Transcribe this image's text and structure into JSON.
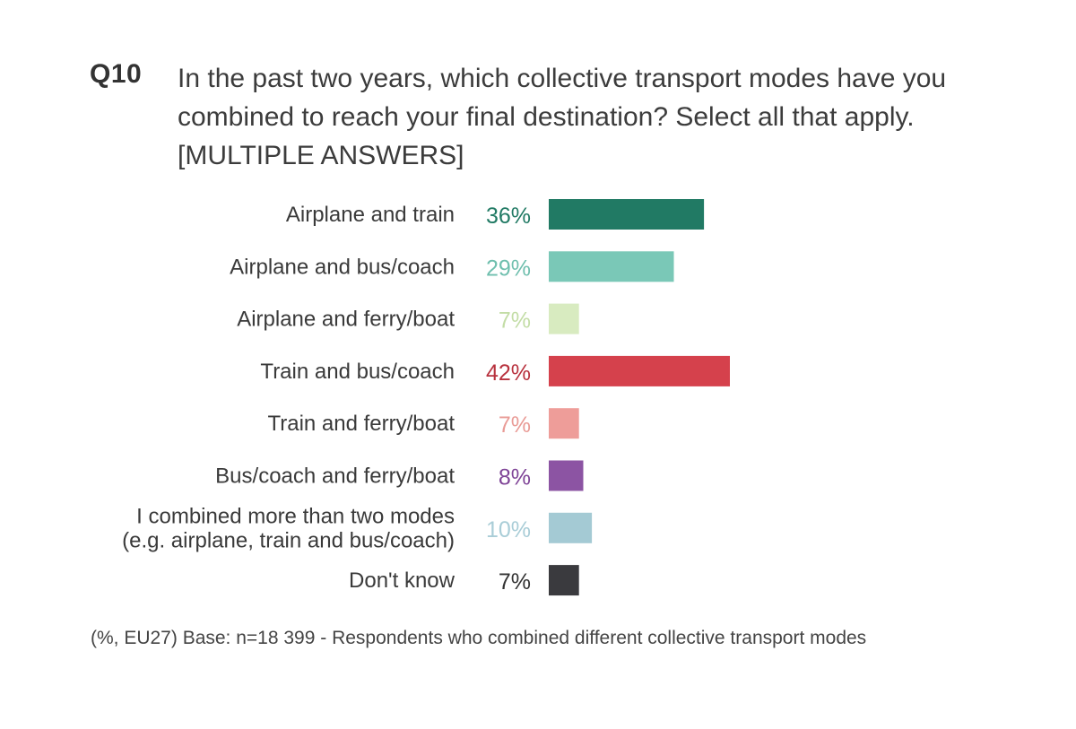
{
  "question": {
    "id": "Q10",
    "lines": [
      "In the past two years, which collective transport modes have you",
      "combined to reach your final destination? Select all that apply.",
      "[MULTIPLE ANSWERS]"
    ]
  },
  "footnote": "(%, EU27) Base: n=18 399 - Respondents who combined different collective transport modes",
  "chart_data": {
    "type": "bar",
    "orientation": "horizontal",
    "grid": false,
    "categories": [
      [
        "Airplane and train"
      ],
      [
        "Airplane and bus/coach"
      ],
      [
        "Airplane and ferry/boat"
      ],
      [
        "Train and bus/coach"
      ],
      [
        "Train and ferry/boat"
      ],
      [
        "Bus/coach and ferry/boat"
      ],
      [
        "I combined more than two modes",
        "(e.g. airplane, train and bus/coach)"
      ],
      [
        "Don't know"
      ]
    ],
    "values": [
      36,
      29,
      7,
      42,
      7,
      8,
      10,
      7
    ],
    "value_labels": [
      "36%",
      "29%",
      "7%",
      "42%",
      "7%",
      "8%",
      "10%",
      "7%"
    ],
    "colors": [
      "#217a64",
      "#7ac8b7",
      "#d8ebc0",
      "#d5414c",
      "#ee9d99",
      "#8c54a3",
      "#a4cad4",
      "#3a3a3e"
    ],
    "label_colors": [
      "#217a64",
      "#6fbfae",
      "#c3dda6",
      "#b8323e",
      "#e99b96",
      "#7f4497",
      "#a9cdd7",
      "#333333"
    ],
    "xlim": [
      0,
      100
    ]
  }
}
